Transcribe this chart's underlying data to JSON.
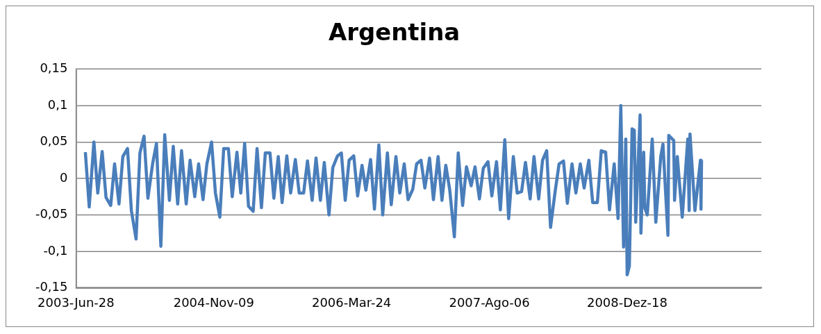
{
  "chart_data": {
    "type": "line",
    "title": "Argentina",
    "x": [
      "2003-08-01",
      "2003-08-15",
      "2003-09-01",
      "2003-09-15",
      "2003-10-01",
      "2003-10-15",
      "2003-11-01",
      "2003-11-15",
      "2003-12-01",
      "2003-12-15",
      "2004-01-01",
      "2004-01-15",
      "2004-02-01",
      "2004-02-15",
      "2004-03-01",
      "2004-03-15",
      "2004-04-01",
      "2004-04-15",
      "2004-05-01",
      "2004-05-15",
      "2004-06-01",
      "2004-06-15",
      "2004-07-01",
      "2004-07-15",
      "2004-08-01",
      "2004-08-15",
      "2004-09-01",
      "2004-09-15",
      "2004-10-01",
      "2004-10-15",
      "2004-11-01",
      "2004-11-15",
      "2004-12-01",
      "2004-12-15",
      "2005-01-01",
      "2005-01-15",
      "2005-02-01",
      "2005-02-15",
      "2005-03-01",
      "2005-03-15",
      "2005-04-01",
      "2005-04-15",
      "2005-05-01",
      "2005-05-15",
      "2005-06-01",
      "2005-06-15",
      "2005-07-01",
      "2005-07-15",
      "2005-08-01",
      "2005-08-15",
      "2005-09-01",
      "2005-09-15",
      "2005-10-01",
      "2005-10-15",
      "2005-11-01",
      "2005-11-15",
      "2005-12-01",
      "2005-12-15",
      "2006-01-01",
      "2006-01-15",
      "2006-02-01",
      "2006-02-15",
      "2006-03-01",
      "2006-03-15",
      "2006-04-01",
      "2006-04-15",
      "2006-05-01",
      "2006-05-15",
      "2006-06-01",
      "2006-06-15",
      "2006-07-01",
      "2006-07-15",
      "2006-08-01",
      "2006-08-15",
      "2006-09-01",
      "2006-09-15",
      "2006-10-01",
      "2006-10-15",
      "2006-11-01",
      "2006-11-15",
      "2006-12-01",
      "2006-12-15",
      "2007-01-01",
      "2007-01-15",
      "2007-02-01",
      "2007-02-15",
      "2007-03-01",
      "2007-03-15",
      "2007-04-01",
      "2007-04-15",
      "2007-05-01",
      "2007-05-15",
      "2007-06-01",
      "2007-06-15",
      "2007-07-01",
      "2007-07-15",
      "2007-08-01",
      "2007-08-15",
      "2007-09-01",
      "2007-09-15",
      "2007-10-01",
      "2007-10-15",
      "2007-11-01",
      "2007-11-15",
      "2007-12-01",
      "2007-12-15",
      "2008-01-01",
      "2008-01-15",
      "2008-02-01",
      "2008-02-15",
      "2008-03-01",
      "2008-03-15",
      "2008-04-01",
      "2008-04-15",
      "2008-05-01",
      "2008-05-15",
      "2008-06-01",
      "2008-06-15",
      "2008-07-01",
      "2008-07-15",
      "2008-08-01",
      "2008-08-15",
      "2008-09-01",
      "2008-09-15",
      "2008-10-01",
      "2008-10-15",
      "2008-11-01",
      "2008-11-15",
      "2008-11-25",
      "2008-12-05",
      "2008-12-13",
      "2008-12-18",
      "2008-12-26",
      "2009-01-05",
      "2009-01-13",
      "2009-01-18",
      "2009-02-03",
      "2009-02-06",
      "2009-02-16",
      "2009-02-20",
      "2009-03-01",
      "2009-03-19",
      "2009-04-01",
      "2009-04-19",
      "2009-04-27",
      "2009-05-15",
      "2009-05-18",
      "2009-06-05",
      "2009-06-08",
      "2009-06-18",
      "2009-07-06",
      "2009-07-26",
      "2009-07-31",
      "2009-08-03",
      "2009-08-21",
      "2009-09-10",
      "2009-09-12",
      "2009-09-14"
    ],
    "series": [
      {
        "color": "#4a7ebb",
        "values": [
          0.036,
          -0.039,
          0.05,
          -0.02,
          0.037,
          -0.026,
          -0.037,
          0.02,
          -0.035,
          0.03,
          0.041,
          -0.044,
          -0.083,
          0.035,
          0.058,
          -0.027,
          0.02,
          0.048,
          -0.093,
          0.06,
          -0.03,
          0.044,
          -0.035,
          0.038,
          -0.035,
          0.025,
          -0.025,
          0.02,
          -0.029,
          0.02,
          0.05,
          -0.02,
          -0.053,
          0.041,
          0.041,
          -0.025,
          0.036,
          -0.02,
          0.048,
          -0.038,
          -0.045,
          0.041,
          -0.04,
          0.035,
          0.035,
          -0.027,
          0.03,
          -0.033,
          0.031,
          -0.02,
          0.026,
          -0.02,
          -0.02,
          0.024,
          -0.03,
          0.028,
          -0.03,
          0.022,
          -0.05,
          0.015,
          0.031,
          0.035,
          -0.03,
          0.025,
          0.031,
          -0.024,
          0.018,
          -0.016,
          0.026,
          -0.042,
          0.046,
          -0.05,
          0.035,
          -0.036,
          0.03,
          -0.02,
          0.02,
          -0.029,
          -0.015,
          0.02,
          0.025,
          -0.013,
          0.028,
          -0.029,
          0.03,
          -0.03,
          0.018,
          -0.015,
          -0.08,
          0.035,
          -0.037,
          0.016,
          -0.01,
          0.016,
          -0.028,
          0.014,
          0.023,
          -0.024,
          0.023,
          -0.043,
          0.053,
          -0.055,
          0.03,
          -0.02,
          -0.018,
          0.022,
          -0.028,
          0.03,
          -0.028,
          0.025,
          0.038,
          -0.067,
          -0.017,
          0.02,
          0.024,
          -0.034,
          0.02,
          -0.02,
          0.02,
          -0.013,
          0.025,
          -0.033,
          -0.033,
          0.038,
          0.036,
          -0.043,
          0.02,
          -0.055,
          0.1,
          -0.094,
          0.054,
          -0.132,
          -0.12,
          0.068,
          0.066,
          -0.06,
          0.087,
          -0.075,
          0.036,
          -0.04,
          -0.05,
          0.054,
          -0.06,
          0.03,
          0.047,
          -0.078,
          0.059,
          0.052,
          -0.03,
          0.03,
          -0.053,
          0.054,
          -0.044,
          0.061,
          -0.044,
          0.025,
          -0.042,
          0.025
        ]
      }
    ],
    "xlim": [
      "2003-06-28",
      "2010-04-19"
    ],
    "xticks": [
      {
        "value": "2003-06-28",
        "label": "2003-Jun-28"
      },
      {
        "value": "2004-11-09",
        "label": "2004-Nov-09"
      },
      {
        "value": "2006-03-24",
        "label": "2006-Mar-24"
      },
      {
        "value": "2007-08-06",
        "label": "2007-Ago-06"
      },
      {
        "value": "2008-12-18",
        "label": "2008-Dez-18"
      }
    ],
    "ylim": [
      -0.15,
      0.15
    ],
    "yticks": [
      {
        "value": 0.15,
        "label": "0,15"
      },
      {
        "value": 0.1,
        "label": "0,1"
      },
      {
        "value": 0.05,
        "label": "0,05"
      },
      0,
      {
        "value": -0.05,
        "label": "-0,05"
      },
      {
        "value": -0.1,
        "label": "-0,1"
      },
      {
        "value": -0.15,
        "label": "-0,15"
      }
    ],
    "grid": "y",
    "legend": false,
    "marker": "none",
    "line_style": "solid"
  }
}
